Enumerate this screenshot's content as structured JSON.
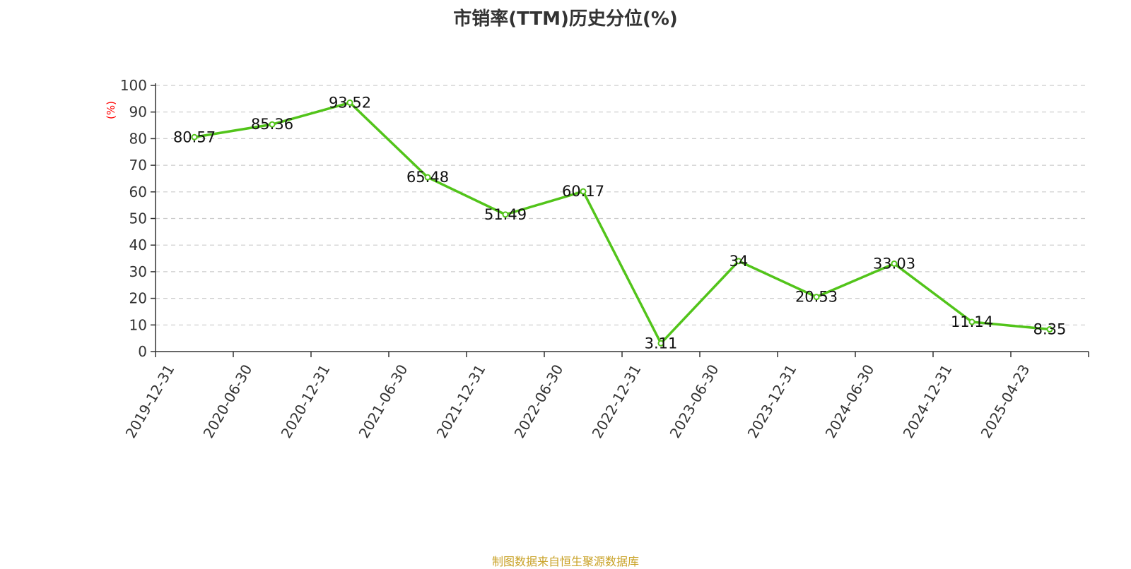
{
  "title": "市销率(TTM)历史分位(%)",
  "source": "制图数据来自恒生聚源数据库",
  "colors": {
    "line": "#52c41a",
    "grid": "#cccccc",
    "axis": "#333333",
    "ylabel": "#ff0000",
    "source": "#c9a227"
  },
  "chart_data": {
    "type": "line",
    "categories": [
      "2019-12-31",
      "2020-06-30",
      "2020-12-31",
      "2021-06-30",
      "2021-12-31",
      "2022-06-30",
      "2022-12-31",
      "2023-06-30",
      "2023-12-31",
      "2024-06-30",
      "2024-12-31",
      "2025-04-23"
    ],
    "values": [
      80.57,
      85.36,
      93.52,
      65.48,
      51.49,
      60.17,
      3.11,
      34,
      20.53,
      33.03,
      11.14,
      8.35
    ],
    "value_labels": [
      "80.57",
      "85.36",
      "93.52",
      "65.48",
      "51.49",
      "60.17",
      "3.11",
      "34",
      "20.53",
      "33.03",
      "11.14",
      "8.35"
    ],
    "title": "市销率(TTM)历史分位(%)",
    "xlabel": "",
    "ylabel": "(%)",
    "ylim": [
      0,
      100
    ],
    "yticks": [
      "0",
      "10",
      "20",
      "30",
      "40",
      "50",
      "60",
      "70",
      "80",
      "90",
      "100"
    ],
    "grid": true,
    "legend": "none"
  }
}
